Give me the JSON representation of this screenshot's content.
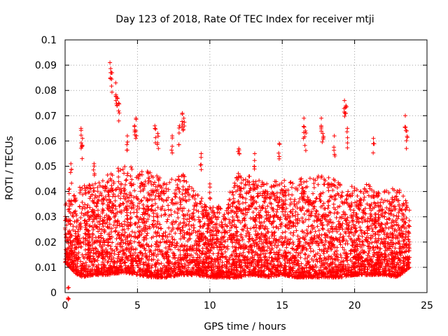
{
  "chart_data": {
    "type": "scatter",
    "title": "Day 123 of 2018, Rate Of TEC Index for receiver mtji",
    "xlabel": "GPS time / hours",
    "ylabel": "ROTI / TECUs",
    "xlim": [
      0,
      25
    ],
    "ylim": [
      0,
      0.1
    ],
    "xticks": [
      0,
      5,
      10,
      15,
      20,
      25
    ],
    "yticks": [
      0,
      0.01,
      0.02,
      0.03,
      0.04,
      0.05,
      0.06,
      0.07,
      0.08,
      0.09,
      0.1
    ],
    "xtick_labels": [
      "0",
      "5",
      "10",
      "15",
      "20",
      "25"
    ],
    "ytick_labels": [
      "0",
      "0.01",
      "0.02",
      "0.03",
      "0.04",
      "0.05",
      "0.06",
      "0.07",
      "0.08",
      "0.09",
      "0.1"
    ],
    "grid": true,
    "marker": "+",
    "color": "#ff0000",
    "data_range": {
      "x_min": 0.0,
      "x_max": 23.8,
      "y_min": 0.002,
      "y_max": 0.091
    },
    "series": [
      {
        "name": "ROTI",
        "spikes": [
          {
            "x": 0.25,
            "y": 0.002
          },
          {
            "x": 0.3,
            "y": 0.041
          },
          {
            "x": 0.4,
            "y": 0.051
          },
          {
            "x": 1.1,
            "y": 0.065
          },
          {
            "x": 1.2,
            "y": 0.061
          },
          {
            "x": 2.0,
            "y": 0.051
          },
          {
            "x": 3.1,
            "y": 0.091
          },
          {
            "x": 3.2,
            "y": 0.087
          },
          {
            "x": 3.5,
            "y": 0.083
          },
          {
            "x": 3.6,
            "y": 0.077
          },
          {
            "x": 3.7,
            "y": 0.075
          },
          {
            "x": 4.3,
            "y": 0.062
          },
          {
            "x": 4.8,
            "y": 0.066
          },
          {
            "x": 4.9,
            "y": 0.069
          },
          {
            "x": 6.2,
            "y": 0.066
          },
          {
            "x": 6.4,
            "y": 0.063
          },
          {
            "x": 7.4,
            "y": 0.062
          },
          {
            "x": 7.9,
            "y": 0.066
          },
          {
            "x": 8.1,
            "y": 0.071
          },
          {
            "x": 8.2,
            "y": 0.069
          },
          {
            "x": 9.4,
            "y": 0.055
          },
          {
            "x": 10.0,
            "y": 0.043
          },
          {
            "x": 12.0,
            "y": 0.057
          },
          {
            "x": 13.1,
            "y": 0.055
          },
          {
            "x": 14.8,
            "y": 0.059
          },
          {
            "x": 16.5,
            "y": 0.069
          },
          {
            "x": 16.6,
            "y": 0.064
          },
          {
            "x": 17.7,
            "y": 0.069
          },
          {
            "x": 17.8,
            "y": 0.063
          },
          {
            "x": 18.6,
            "y": 0.062
          },
          {
            "x": 19.3,
            "y": 0.076
          },
          {
            "x": 19.4,
            "y": 0.074
          },
          {
            "x": 19.5,
            "y": 0.065
          },
          {
            "x": 21.3,
            "y": 0.061
          },
          {
            "x": 23.5,
            "y": 0.07
          },
          {
            "x": 23.6,
            "y": 0.064
          }
        ],
        "envelope": [
          {
            "x": 0.0,
            "y_low": 0.012,
            "y_high": 0.035
          },
          {
            "x": 1.0,
            "y_low": 0.006,
            "y_high": 0.042
          },
          {
            "x": 2.0,
            "y_low": 0.007,
            "y_high": 0.043
          },
          {
            "x": 3.0,
            "y_low": 0.007,
            "y_high": 0.047
          },
          {
            "x": 4.0,
            "y_low": 0.008,
            "y_high": 0.052
          },
          {
            "x": 5.0,
            "y_low": 0.007,
            "y_high": 0.048
          },
          {
            "x": 6.0,
            "y_low": 0.006,
            "y_high": 0.048
          },
          {
            "x": 7.0,
            "y_low": 0.006,
            "y_high": 0.044
          },
          {
            "x": 8.0,
            "y_low": 0.007,
            "y_high": 0.048
          },
          {
            "x": 9.0,
            "y_low": 0.007,
            "y_high": 0.04
          },
          {
            "x": 10.0,
            "y_low": 0.006,
            "y_high": 0.034
          },
          {
            "x": 11.0,
            "y_low": 0.006,
            "y_high": 0.035
          },
          {
            "x": 12.0,
            "y_low": 0.006,
            "y_high": 0.048
          },
          {
            "x": 13.0,
            "y_low": 0.007,
            "y_high": 0.046
          },
          {
            "x": 14.0,
            "y_low": 0.006,
            "y_high": 0.044
          },
          {
            "x": 15.0,
            "y_low": 0.007,
            "y_high": 0.045
          },
          {
            "x": 16.0,
            "y_low": 0.006,
            "y_high": 0.044
          },
          {
            "x": 17.0,
            "y_low": 0.006,
            "y_high": 0.048
          },
          {
            "x": 18.0,
            "y_low": 0.006,
            "y_high": 0.046
          },
          {
            "x": 19.0,
            "y_low": 0.006,
            "y_high": 0.044
          },
          {
            "x": 20.0,
            "y_low": 0.007,
            "y_high": 0.042
          },
          {
            "x": 21.0,
            "y_low": 0.007,
            "y_high": 0.043
          },
          {
            "x": 22.0,
            "y_low": 0.007,
            "y_high": 0.04
          },
          {
            "x": 23.0,
            "y_low": 0.006,
            "y_high": 0.042
          },
          {
            "x": 23.8,
            "y_low": 0.01,
            "y_high": 0.035
          }
        ]
      }
    ]
  }
}
